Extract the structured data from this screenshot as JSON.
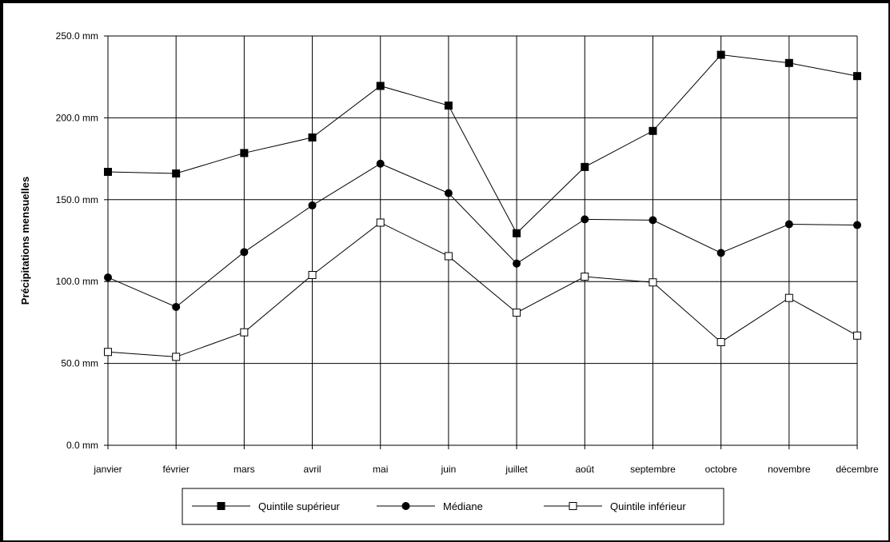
{
  "chart_data": {
    "type": "line",
    "title": "",
    "ylabel": "Précipitations mensuelles",
    "xlabel": "",
    "ylim": [
      0,
      250
    ],
    "yticks": [
      0,
      50,
      100,
      150,
      200,
      250
    ],
    "ytick_labels": [
      "0.0 mm",
      "50.0 mm",
      "100.0 mm",
      "150.0 mm",
      "200.0 mm",
      "250.0 mm"
    ],
    "grid": true,
    "legend_position": "bottom",
    "categories": [
      "janvier",
      "février",
      "mars",
      "avril",
      "mai",
      "juin",
      "juillet",
      "août",
      "septembre",
      "octobre",
      "novembre",
      "décembre"
    ],
    "series": [
      {
        "name": "Quintile supérieur",
        "marker": "filled-square",
        "values": [
          167,
          166,
          178.5,
          188,
          219.5,
          207.5,
          129.5,
          170,
          192,
          238.5,
          233.5,
          225.5
        ]
      },
      {
        "name": "Médiane",
        "marker": "filled-circle",
        "values": [
          102.5,
          84.5,
          118,
          146.5,
          172,
          154,
          111,
          138,
          137.5,
          117.5,
          135,
          134.5
        ]
      },
      {
        "name": "Quintile inférieur",
        "marker": "open-square",
        "values": [
          57,
          54,
          69,
          104,
          136,
          115.5,
          81,
          103,
          99.5,
          63,
          90,
          67
        ]
      }
    ],
    "colors": {
      "line": "#000000",
      "grid": "#000000",
      "background": "#ffffff"
    }
  }
}
